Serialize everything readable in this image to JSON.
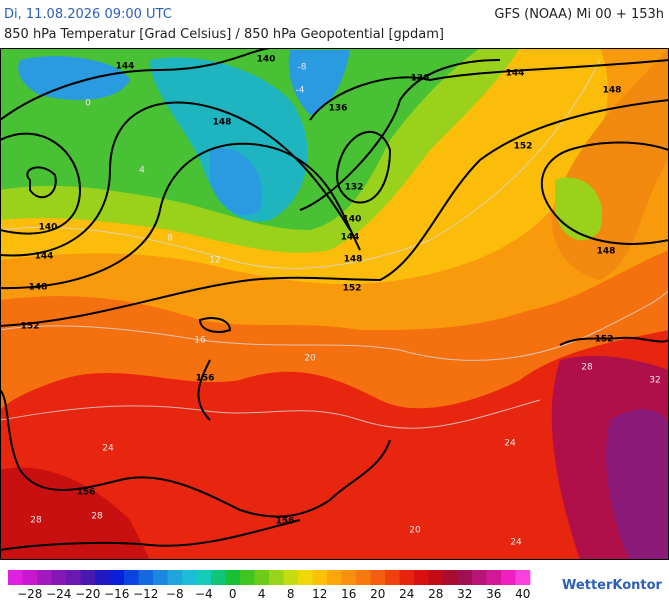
{
  "header": {
    "date": "Di, 11.08.2026 09:00 UTC",
    "model": "GFS (NOAA) Mi 00 + 153h",
    "subtitle": "850 hPa Temperatur [Grad Celsius] / 850 hPa Geopotential [gpdam]"
  },
  "map": {
    "geopotential_labels": [
      "144",
      "140",
      "148",
      "136",
      "136",
      "144",
      "148",
      "152",
      "132",
      "140",
      "144",
      "148",
      "152",
      "140",
      "144",
      "148",
      "152",
      "148",
      "152",
      "156",
      "156",
      "156"
    ],
    "temperature_labels": [
      "0",
      "4",
      "8",
      "12",
      "16",
      "20",
      "24",
      "28",
      "28",
      "32",
      "24",
      "20",
      "24",
      "28",
      "-4",
      "-8"
    ]
  },
  "colorbar": {
    "labels": [
      "−28",
      "−24",
      "−20",
      "−16",
      "−12",
      "−8",
      "−4",
      "0",
      "4",
      "8",
      "12",
      "16",
      "20",
      "24",
      "28",
      "32",
      "36",
      "40"
    ]
  },
  "brand": "WetterKontor"
}
